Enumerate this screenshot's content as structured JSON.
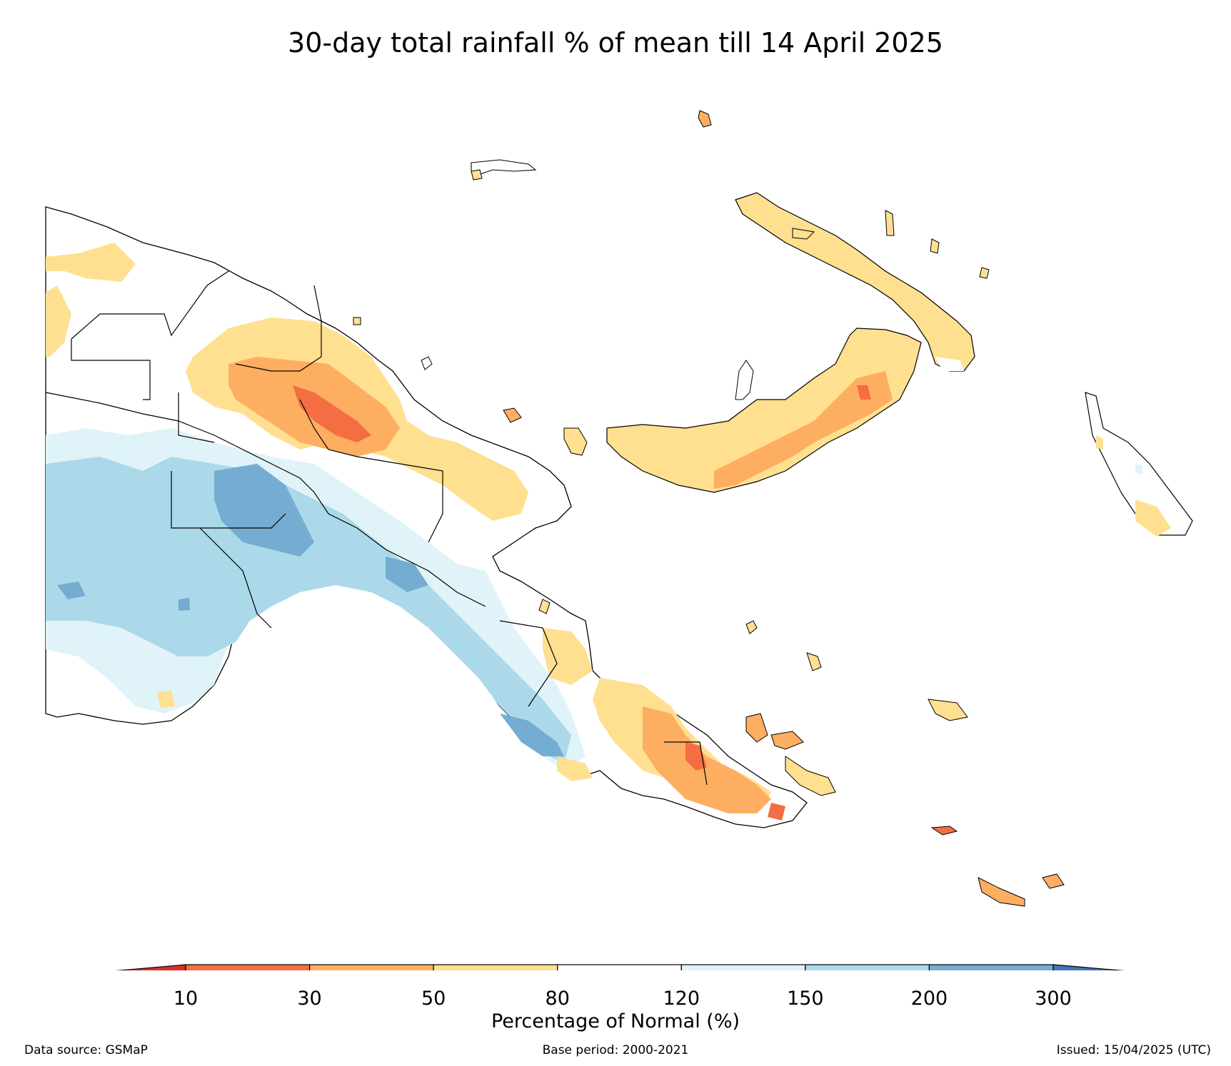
{
  "title": "30-day total rainfall % of mean till 14 April 2025",
  "colorbar": {
    "label": "Percentage of Normal (%)",
    "ticks": [
      "10",
      "30",
      "50",
      "80",
      "120",
      "150",
      "200",
      "300"
    ],
    "colors": [
      "#d73027",
      "#f46d43",
      "#fdae61",
      "#fee090",
      "#ffffff",
      "#e0f3f8",
      "#abd9e9",
      "#74add1",
      "#4575b4"
    ]
  },
  "footer": {
    "source": "Data source: GSMaP",
    "base_period": "Base period: 2000-2021",
    "issued": "Issued: 15/04/2025 (UTC)"
  }
}
